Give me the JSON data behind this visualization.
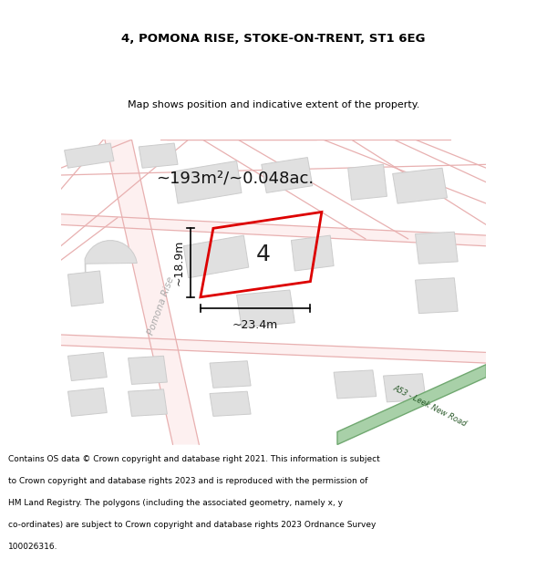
{
  "title_line1": "4, POMONA RISE, STOKE-ON-TRENT, ST1 6EG",
  "title_line2": "Map shows position and indicative extent of the property.",
  "area_text": "~193m²/~0.048ac.",
  "plot_number": "4",
  "dim_width": "~23.4m",
  "dim_height": "~18.9m",
  "road_label": "Pomona Rise",
  "road_label2": "A53 - Leek New Road",
  "footer_text": "Contains OS data © Crown copyright and database right 2021. This information is subject to Crown copyright and database rights 2023 and is reproduced with the permission of HM Land Registry. The polygons (including the associated geometry, namely x, y co-ordinates) are subject to Crown copyright and database rights 2023 Ordnance Survey 100026316.",
  "map_bg": "#ffffff",
  "road_line_color": "#e8b0b0",
  "road_fill_color": "#fdf0f0",
  "plot_outline_color": "#dd0000",
  "building_color": "#e0e0e0",
  "building_edge": "#cccccc",
  "green_road_color": "#a8d0a8",
  "green_road_edge": "#70a870"
}
